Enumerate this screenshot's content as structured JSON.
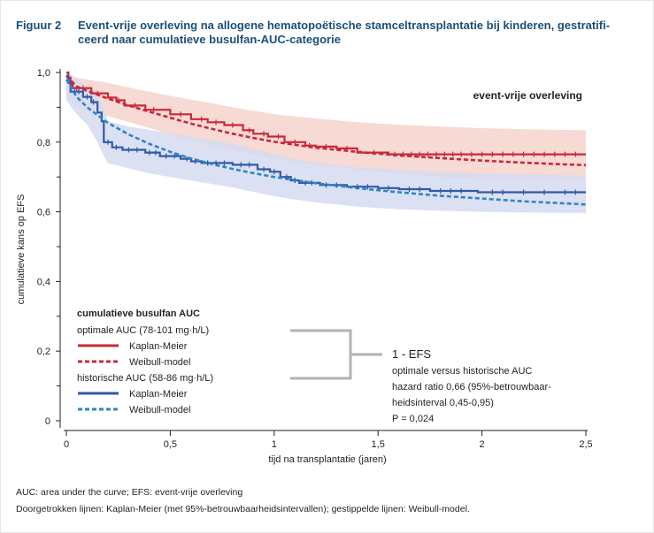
{
  "figure": {
    "label": "Figuur 2",
    "title": "Event-vrije overleving na allogene hematopoëtische stamceltransplantatie bij kinderen, gestratifi-ceerd naar cumulatieve busulfan-AUC-categorie",
    "title_line1": "Event-vrije overleving na allogene hematopoëtische stamceltransplantatie bij kinderen, gestratifi-",
    "title_line2": "ceerd naar cumulatieve busulfan-AUC-categorie"
  },
  "footnotes": [
    "AUC: area under the curve; EFS: event-vrije overleving",
    "Doorgetrokken lijnen: Kaplan-Meier (met 95%-betrouwbaarheidsintervallen); gestippelde lijnen: Weibull-model."
  ],
  "colors": {
    "title": "#1a4f7a",
    "optimal": "#c8283a",
    "optimal_ci": "#f6d3cc",
    "historic": "#2f5aa8",
    "historic_ci": "#d5dbf1",
    "weibull_historic": "#2f86c6",
    "bracket": "#b3b3b3"
  },
  "chart_data": {
    "type": "line",
    "title": "event-vrije overleving",
    "xlabel": "tijd na transplantatie (jaren)",
    "ylabel": "cumulatieve kans op EFS",
    "xlim": [
      0,
      2.5
    ],
    "ylim": [
      0,
      1.0
    ],
    "x_ticks": [
      0,
      0.5,
      1,
      1.5,
      2,
      2.5
    ],
    "x_tick_labels": [
      "0",
      "0,5",
      "1",
      "1,5",
      "2",
      "2,5"
    ],
    "y_ticks": [
      0,
      0.2,
      0.4,
      0.6,
      0.8,
      1.0
    ],
    "y_tick_labels": [
      "0",
      "0,2",
      "0,4",
      "0,6",
      "0,8",
      "1,0"
    ],
    "grid": false,
    "legend": {
      "heading": "cumulatieve busulfan AUC",
      "group1": "optimale AUC (78-101 mg·h/L)",
      "group2": "historische AUC (58-86 mg·h/L)",
      "km_label": "Kaplan-Meier",
      "weibull_label": "Weibull-model"
    },
    "annotation": {
      "title": "1 - EFS",
      "lines": [
        "optimale versus historische AUC",
        "hazard ratio 0,66 (95%-betrouwbaar-",
        "heidsinterval 0,45-0,95)",
        "P = 0,024"
      ]
    },
    "series": [
      {
        "group": "optimale AUC (78-101 mg·h/L)",
        "model": "Kaplan-Meier",
        "style": "solid",
        "steps": [
          [
            0,
            1.0
          ],
          [
            0.01,
            0.985
          ],
          [
            0.02,
            0.97
          ],
          [
            0.03,
            0.955
          ],
          [
            0.12,
            0.94
          ],
          [
            0.2,
            0.928
          ],
          [
            0.24,
            0.92
          ],
          [
            0.28,
            0.905
          ],
          [
            0.38,
            0.893
          ],
          [
            0.5,
            0.88
          ],
          [
            0.6,
            0.866
          ],
          [
            0.68,
            0.857
          ],
          [
            0.76,
            0.849
          ],
          [
            0.85,
            0.834
          ],
          [
            0.9,
            0.824
          ],
          [
            0.97,
            0.816
          ],
          [
            1.05,
            0.8
          ],
          [
            1.15,
            0.79
          ],
          [
            1.2,
            0.787
          ],
          [
            1.3,
            0.782
          ],
          [
            1.4,
            0.77
          ],
          [
            1.55,
            0.765
          ],
          [
            2.5,
            0.765
          ]
        ],
        "censor_x": [
          0.05,
          0.08,
          0.15,
          0.25,
          0.33,
          0.42,
          0.55,
          0.65,
          0.72,
          0.8,
          0.88,
          0.95,
          1.02,
          1.1,
          1.17,
          1.25,
          1.35,
          1.48,
          1.58,
          1.62,
          1.66,
          1.7,
          1.74,
          1.78,
          1.82,
          1.86,
          1.9,
          1.95,
          2.0,
          2.05,
          2.1,
          2.15,
          2.2,
          2.25,
          2.3,
          2.35,
          2.4,
          2.45
        ]
      },
      {
        "group": "optimale AUC (78-101 mg·h/L)",
        "model": "Weibull-model",
        "style": "dashed",
        "x": [
          0,
          0.05,
          0.1,
          0.2,
          0.3,
          0.4,
          0.5,
          0.6,
          0.7,
          0.8,
          0.9,
          1.0,
          1.2,
          1.4,
          1.6,
          1.8,
          2.0,
          2.2,
          2.4,
          2.5
        ],
        "values": [
          0.99,
          0.96,
          0.947,
          0.925,
          0.905,
          0.887,
          0.87,
          0.853,
          0.838,
          0.824,
          0.812,
          0.801,
          0.784,
          0.772,
          0.762,
          0.754,
          0.747,
          0.741,
          0.736,
          0.734
        ]
      },
      {
        "group": "historische AUC (58-86 mg·h/L)",
        "model": "Kaplan-Meier",
        "style": "solid",
        "steps": [
          [
            0,
            0.99
          ],
          [
            0.01,
            0.97
          ],
          [
            0.02,
            0.945
          ],
          [
            0.08,
            0.93
          ],
          [
            0.12,
            0.915
          ],
          [
            0.15,
            0.885
          ],
          [
            0.17,
            0.86
          ],
          [
            0.18,
            0.8
          ],
          [
            0.22,
            0.785
          ],
          [
            0.27,
            0.778
          ],
          [
            0.38,
            0.77
          ],
          [
            0.45,
            0.76
          ],
          [
            0.55,
            0.752
          ],
          [
            0.6,
            0.745
          ],
          [
            0.65,
            0.74
          ],
          [
            0.8,
            0.735
          ],
          [
            0.92,
            0.722
          ],
          [
            0.98,
            0.715
          ],
          [
            1.03,
            0.7
          ],
          [
            1.08,
            0.69
          ],
          [
            1.12,
            0.683
          ],
          [
            1.22,
            0.677
          ],
          [
            1.35,
            0.672
          ],
          [
            1.5,
            0.668
          ],
          [
            1.6,
            0.665
          ],
          [
            1.75,
            0.66
          ],
          [
            1.98,
            0.656
          ],
          [
            2.5,
            0.656
          ]
        ],
        "censor_x": [
          0.04,
          0.06,
          0.1,
          0.13,
          0.2,
          0.24,
          0.3,
          0.34,
          0.4,
          0.43,
          0.48,
          0.52,
          0.58,
          0.62,
          0.68,
          0.72,
          0.76,
          0.84,
          0.88,
          0.95,
          1.0,
          1.06,
          1.1,
          1.15,
          1.18,
          1.25,
          1.3,
          1.4,
          1.45,
          1.55,
          1.65,
          1.7,
          1.8,
          1.85,
          1.9,
          2.05,
          2.1,
          2.2,
          2.3,
          2.4,
          2.45
        ]
      },
      {
        "group": "historische AUC (58-86 mg·h/L)",
        "model": "Weibull-model",
        "style": "dashed",
        "x": [
          0,
          0.05,
          0.1,
          0.2,
          0.3,
          0.4,
          0.5,
          0.6,
          0.7,
          0.8,
          0.9,
          1.0,
          1.2,
          1.4,
          1.6,
          1.8,
          2.0,
          2.2,
          2.4,
          2.5
        ],
        "values": [
          0.98,
          0.93,
          0.9,
          0.855,
          0.822,
          0.795,
          0.772,
          0.753,
          0.737,
          0.723,
          0.711,
          0.7,
          0.682,
          0.668,
          0.656,
          0.646,
          0.638,
          0.63,
          0.624,
          0.621
        ]
      }
    ],
    "ci_bands": [
      {
        "group": "optimale AUC (78-101 mg·h/L)",
        "x": [
          0,
          0.05,
          0.1,
          0.2,
          0.3,
          0.4,
          0.5,
          0.6,
          0.7,
          0.8,
          0.9,
          1.0,
          1.2,
          1.4,
          1.6,
          1.8,
          2.0,
          2.2,
          2.4,
          2.5
        ],
        "upper": [
          1.0,
          0.985,
          0.98,
          0.97,
          0.957,
          0.945,
          0.933,
          0.922,
          0.912,
          0.9,
          0.89,
          0.88,
          0.868,
          0.857,
          0.85,
          0.845,
          0.84,
          0.837,
          0.835,
          0.834
        ],
        "lower": [
          0.93,
          0.9,
          0.89,
          0.875,
          0.858,
          0.84,
          0.823,
          0.805,
          0.79,
          0.777,
          0.765,
          0.752,
          0.736,
          0.722,
          0.71,
          0.7,
          0.695,
          0.692,
          0.69,
          0.69
        ]
      },
      {
        "group": "historische AUC (58-86 mg·h/L)",
        "x": [
          0,
          0.05,
          0.1,
          0.15,
          0.18,
          0.2,
          0.3,
          0.4,
          0.5,
          0.6,
          0.7,
          0.8,
          0.9,
          1.0,
          1.1,
          1.2,
          1.4,
          1.6,
          1.8,
          2.0,
          2.2,
          2.4,
          2.5
        ],
        "upper": [
          1.0,
          0.98,
          0.96,
          0.93,
          0.9,
          0.86,
          0.845,
          0.835,
          0.825,
          0.815,
          0.805,
          0.795,
          0.78,
          0.765,
          0.75,
          0.74,
          0.728,
          0.72,
          0.714,
          0.71,
          0.707,
          0.705,
          0.704
        ],
        "lower": [
          0.92,
          0.88,
          0.85,
          0.8,
          0.76,
          0.74,
          0.725,
          0.71,
          0.7,
          0.69,
          0.68,
          0.67,
          0.657,
          0.645,
          0.635,
          0.627,
          0.615,
          0.607,
          0.603,
          0.6,
          0.598,
          0.597,
          0.597
        ]
      }
    ]
  }
}
